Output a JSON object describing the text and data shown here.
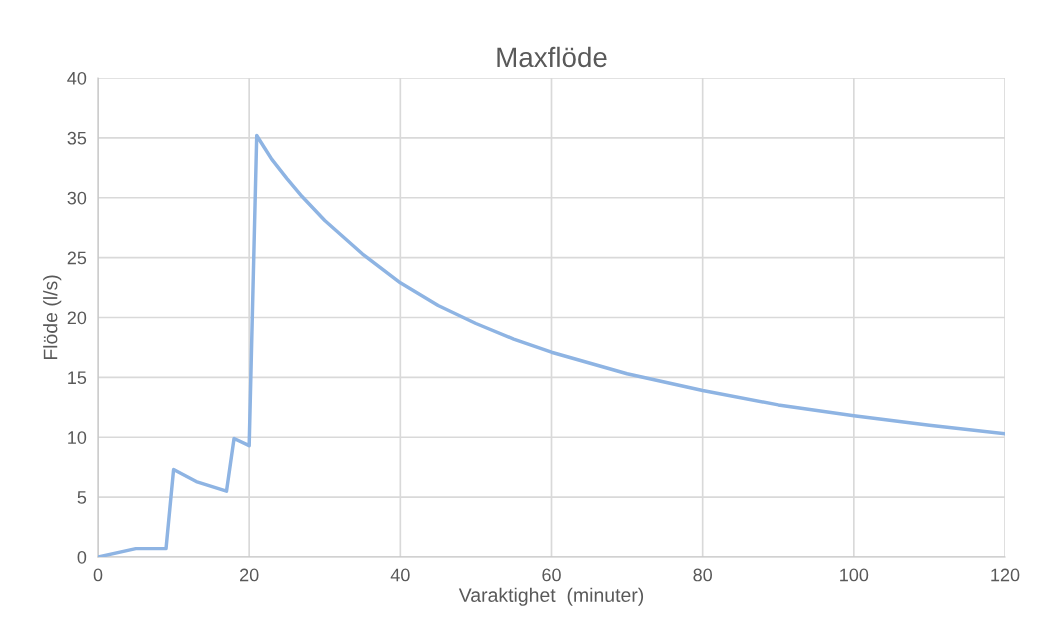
{
  "chart_data": {
    "type": "line",
    "title": "Maxflöde",
    "xlabel": "Varaktighet  (minuter)",
    "ylabel": "Flöde (l/s)",
    "series": [
      {
        "color": "#8eb4e3",
        "x": [
          0,
          5,
          9,
          10,
          13,
          17,
          18,
          20,
          21,
          22,
          23,
          25,
          27,
          30,
          35,
          40,
          45,
          50,
          55,
          60,
          70,
          80,
          90,
          100,
          110,
          120
        ],
        "values": [
          0,
          0.7,
          0.7,
          7.3,
          6.3,
          5.5,
          9.9,
          9.3,
          35.2,
          34.2,
          33.2,
          31.6,
          30.1,
          28.1,
          25.3,
          22.9,
          21.0,
          19.5,
          18.2,
          17.1,
          15.3,
          13.9,
          12.7,
          11.8,
          11.0,
          10.3
        ]
      }
    ],
    "xlim": [
      0,
      120
    ],
    "xticks": [
      0,
      20,
      40,
      60,
      80,
      100,
      120
    ],
    "ylim": [
      0,
      40
    ],
    "yticks": [
      0,
      5,
      10,
      15,
      20,
      25,
      30,
      35,
      40
    ],
    "grid": true,
    "legend": false,
    "marker": "none",
    "line_style": "solid"
  }
}
